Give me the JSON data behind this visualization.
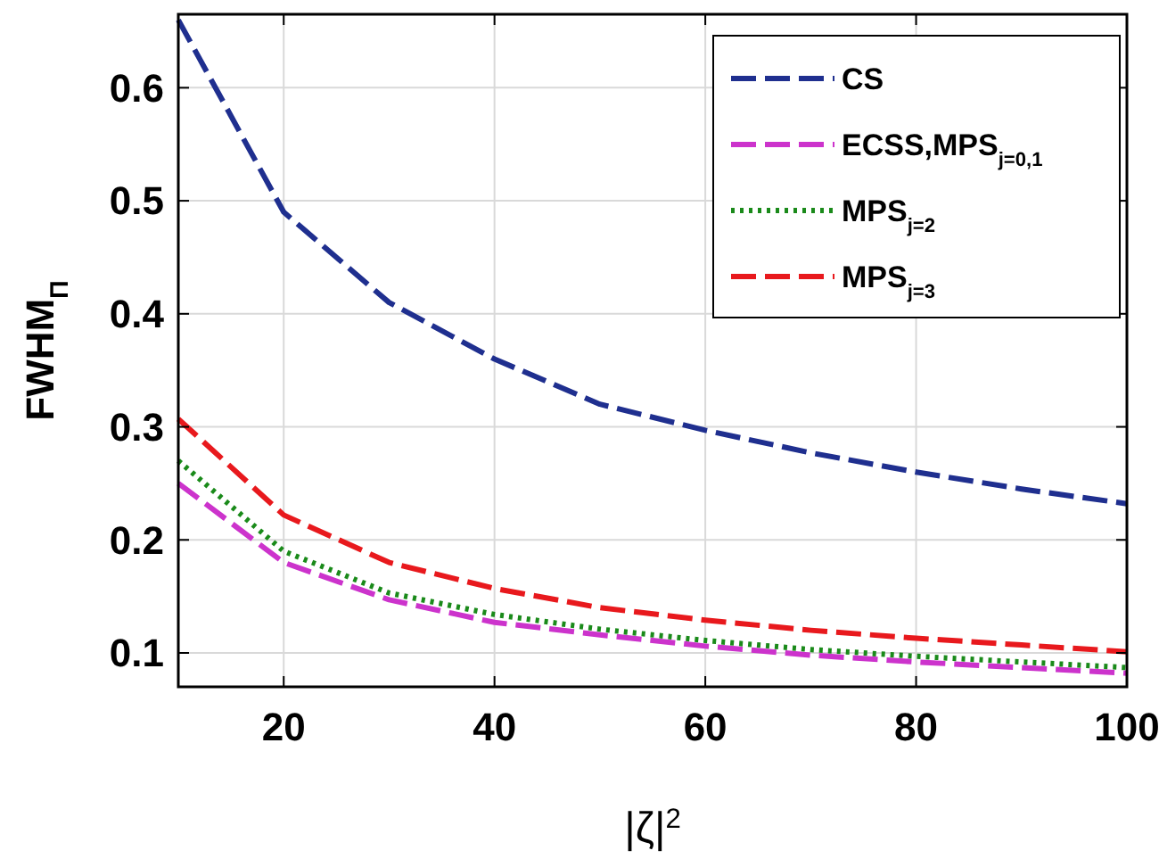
{
  "chart_data": {
    "type": "line",
    "xlabel": "|ζ|$^{2}$",
    "ylabel": "FWHM$_{Π}$",
    "x": [
      10,
      20,
      30,
      40,
      50,
      60,
      70,
      80,
      90,
      100
    ],
    "xlim": [
      10,
      100
    ],
    "xticks": [
      20,
      40,
      60,
      80,
      100
    ],
    "ylim": [
      0.07,
      0.665
    ],
    "yticks": [
      0.1,
      0.2,
      0.3,
      0.4,
      0.5,
      0.6
    ],
    "grid": true,
    "legend": "top right",
    "series": [
      {
        "name": "CS",
        "color": "#1f2f8f",
        "line_style": "dashed",
        "values": [
          0.66,
          0.49,
          0.41,
          0.36,
          0.32,
          0.297,
          0.277,
          0.26,
          0.245,
          0.232
        ]
      },
      {
        "name": "ECSS,MPS$_{j=0,1}$",
        "color": "#cc33cc",
        "line_style": "dashed",
        "values": [
          0.25,
          0.18,
          0.147,
          0.127,
          0.116,
          0.106,
          0.098,
          0.092,
          0.087,
          0.082
        ]
      },
      {
        "name": "MPS$_{j=2}$",
        "color": "#1a8a1a",
        "line_style": "dotted",
        "values": [
          0.27,
          0.19,
          0.153,
          0.134,
          0.121,
          0.111,
          0.103,
          0.097,
          0.092,
          0.087
        ]
      },
      {
        "name": "MPS$_{j=3}$",
        "color": "#e8191d",
        "line_style": "dashed",
        "values": [
          0.307,
          0.222,
          0.18,
          0.157,
          0.14,
          0.129,
          0.12,
          0.113,
          0.107,
          0.101
        ]
      }
    ]
  }
}
